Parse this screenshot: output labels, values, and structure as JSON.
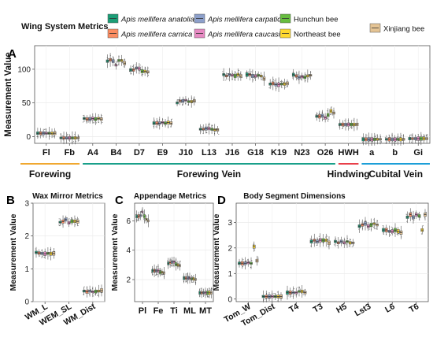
{
  "legend": {
    "title": "Wing System Metrics",
    "items": [
      {
        "label": "Apis mellifera anatoliaca",
        "italic": true,
        "color": "#1b9e77"
      },
      {
        "label": "Apis mellifera carnica",
        "italic": true,
        "color": "#fc8d62"
      },
      {
        "label": "Apis mellifera carpatica",
        "italic": true,
        "color": "#8da0cb"
      },
      {
        "label": "Apis mellifera caucasica",
        "italic": true,
        "color": "#e78ac3"
      },
      {
        "label": "Hunchun bee",
        "italic": false,
        "color": "#66bd3f"
      },
      {
        "label": "Northeast bee",
        "italic": false,
        "color": "#ffd92f"
      },
      {
        "label": "Xinjiang bee",
        "italic": false,
        "color": "#e5c494"
      }
    ]
  },
  "chart_data": [
    {
      "id": "A",
      "type": "box",
      "panel_label": "A",
      "title": "",
      "ylabel": "Measurement Value",
      "ylim": [
        -10,
        135
      ],
      "yticks": [
        0,
        50,
        100
      ],
      "grid": true,
      "categories": [
        "Fl",
        "Fb",
        "A4",
        "B4",
        "D7",
        "E9",
        "J10",
        "L13",
        "J16",
        "G18",
        "K19",
        "N23",
        "O26",
        "HWH",
        "a",
        "b",
        "Gi"
      ],
      "medians_by_category": {
        "Fl": [
          5,
          5,
          5,
          5,
          5,
          5,
          5
        ],
        "Fb": [
          -2,
          -2,
          -2,
          -2,
          -2,
          -2,
          -2
        ],
        "A4": [
          27,
          26,
          26,
          27,
          26,
          27,
          26
        ],
        "B4": [
          112,
          114,
          112,
          106,
          113,
          113,
          109
        ],
        "D7": [
          99,
          99,
          102,
          101,
          97,
          97,
          96
        ],
        "E9": [
          20,
          20,
          20,
          21,
          20,
          21,
          20
        ],
        "J10": [
          50,
          53,
          53,
          54,
          52,
          52,
          53
        ],
        "L13": [
          11,
          11,
          12,
          12,
          11,
          10,
          10
        ],
        "J16": [
          92,
          90,
          92,
          91,
          90,
          92,
          90
        ],
        "G18": [
          92,
          92,
          90,
          90,
          91,
          90,
          86
        ],
        "K19": [
          78,
          79,
          77,
          77,
          78,
          78,
          79
        ],
        "N23": [
          92,
          90,
          88,
          89,
          88,
          90,
          91
        ],
        "O26": [
          30,
          30,
          31,
          28,
          32,
          38,
          35
        ],
        "HWH": [
          18,
          18,
          18,
          18,
          18,
          18,
          18
        ],
        "a": [
          -4,
          -4,
          -4,
          -4,
          -4,
          -4,
          -4
        ],
        "b": [
          -4,
          -4,
          -4,
          -4,
          -4,
          -4,
          -4
        ],
        "Gi": [
          -3,
          -3,
          -3,
          -3,
          -3,
          -3,
          -3
        ]
      },
      "groups": [
        {
          "label": "Forewing",
          "from": "Fl",
          "to": "Fb",
          "color": "#f0a830"
        },
        {
          "label": "Forewing Vein",
          "from": "A4",
          "to": "O26",
          "color": "#1aa08a"
        },
        {
          "label": "Hindwing",
          "from": "HWH",
          "to": "HWH",
          "color": "#e8404a"
        },
        {
          "label": "Cubital Vein",
          "from": "a",
          "to": "Gi",
          "color": "#1d9fd8"
        }
      ]
    },
    {
      "id": "B",
      "type": "box",
      "panel_label": "B",
      "title": "Wax Mirror Metrics",
      "ylabel": "Measurement Value",
      "ylim": [
        0,
        3
      ],
      "yticks": [
        0,
        1,
        2,
        3
      ],
      "grid": true,
      "categories": [
        "WM_L",
        "WEM_SL",
        "WM_Dist"
      ],
      "medians_by_category": {
        "WM_L": [
          1.5,
          1.48,
          1.47,
          1.46,
          1.47,
          1.46,
          1.47
        ],
        "WEM_SL": [
          2.42,
          2.44,
          2.5,
          2.4,
          2.45,
          2.45,
          2.44
        ],
        "WM_Dist": [
          0.32,
          0.3,
          0.32,
          0.3,
          0.31,
          0.32,
          0.34
        ]
      }
    },
    {
      "id": "C",
      "type": "box",
      "panel_label": "C",
      "title": "Appendage Metrics",
      "ylabel": "Measurement Value",
      "ylim": [
        0.5,
        7.2
      ],
      "yticks": [
        2,
        4,
        6
      ],
      "grid": true,
      "categories": [
        "Pl",
        "Fe",
        "Ti",
        "ML",
        "MT"
      ],
      "medians_by_category": {
        "Pl": [
          6.3,
          6.3,
          6.35,
          6.6,
          6.3,
          6.1,
          6.0
        ],
        "Fe": [
          2.6,
          2.6,
          2.6,
          2.6,
          2.5,
          2.5,
          2.45
        ],
        "Ti": [
          3.1,
          3.15,
          3.2,
          3.2,
          3.05,
          3.0,
          2.95
        ],
        "ML": [
          2.1,
          2.1,
          2.1,
          2.1,
          2.05,
          2.05,
          2.0
        ],
        "MT": [
          1.1,
          1.1,
          1.1,
          1.1,
          1.1,
          1.1,
          1.1
        ]
      }
    },
    {
      "id": "D",
      "type": "box",
      "panel_label": "D",
      "title": "Body Segment Dimensions",
      "ylabel": "Measurement Value",
      "ylim": [
        -0.1,
        3.75
      ],
      "yticks": [
        0,
        1,
        2,
        3
      ],
      "grid": true,
      "categories": [
        "Tom_W",
        "Tom_Dist",
        "T4",
        "T3",
        "H5",
        "Lst3",
        "L6",
        "T6"
      ],
      "medians_by_category": {
        "Tom_W": [
          1.4,
          1.4,
          1.4,
          1.42,
          1.4,
          2.05,
          1.5
        ],
        "Tom_Dist": [
          0.1,
          0.1,
          0.1,
          0.1,
          0.1,
          0.1,
          0.1
        ],
        "T4": [
          0.25,
          0.25,
          0.25,
          0.25,
          0.3,
          0.3,
          0.25
        ],
        "T3": [
          2.25,
          2.3,
          2.25,
          2.3,
          2.3,
          2.3,
          2.2
        ],
        "H5": [
          2.25,
          2.2,
          2.25,
          2.2,
          2.25,
          2.2,
          2.2
        ],
        "Lst3": [
          2.85,
          2.9,
          2.95,
          2.85,
          2.9,
          2.95,
          2.9
        ],
        "L6": [
          2.7,
          2.7,
          2.65,
          2.65,
          2.7,
          2.65,
          2.6
        ],
        "T6": [
          3.2,
          3.3,
          3.2,
          3.3,
          3.25,
          2.7,
          3.3
        ]
      }
    }
  ]
}
